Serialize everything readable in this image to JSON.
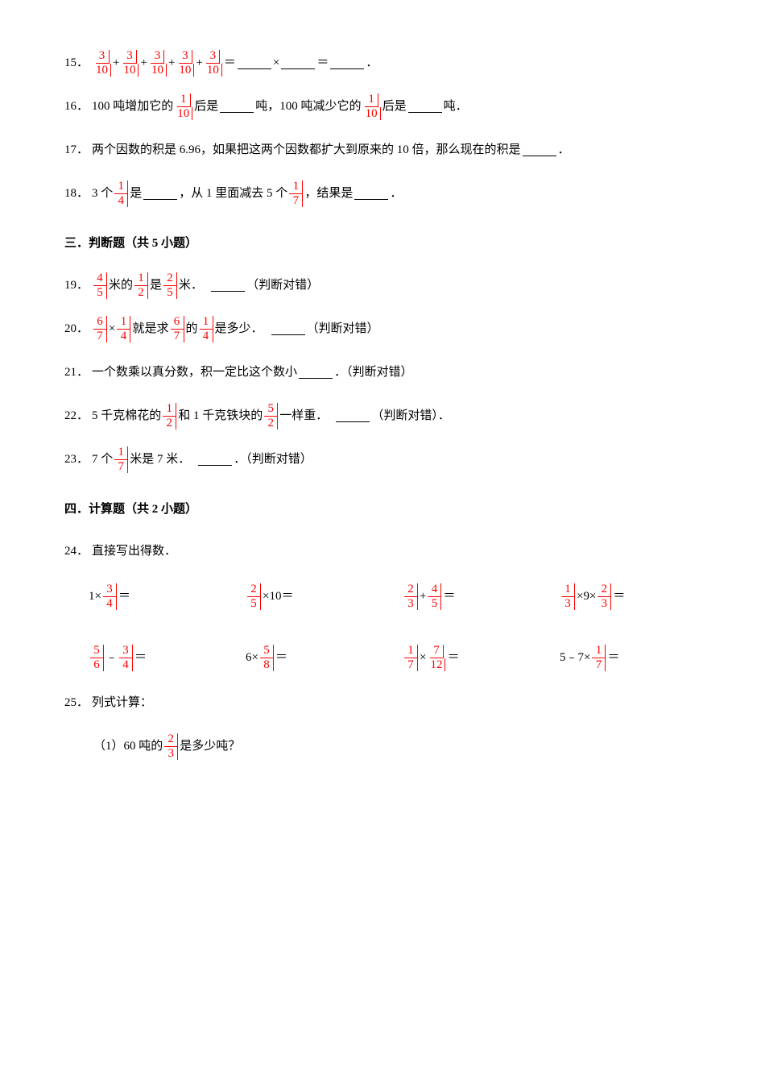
{
  "q15": {
    "num": "15．",
    "f": {
      "n": "3",
      "d": "10"
    },
    "eq": "＝",
    "times": "×",
    "period": "．"
  },
  "q16": {
    "num": "16．",
    "t1": "100 吨增加它的",
    "f1": {
      "n": "1",
      "d": "10"
    },
    "t2": "后是",
    "t3": "吨，100 吨减少它的",
    "f2": {
      "n": "1",
      "d": "10"
    },
    "t4": "后是",
    "t5": "吨．"
  },
  "q17": {
    "num": "17．",
    "t1": "两个因数的积是 6.96，如果把这两个因数都扩大到原来的 10 倍，那么现在的积是",
    "t2": "．"
  },
  "q18": {
    "num": "18．",
    "t1": "3 个",
    "f1": {
      "n": "1",
      "d": "4"
    },
    "t2": "是",
    "t3": "，从 1 里面减去 5 个",
    "f2": {
      "n": "1",
      "d": "7"
    },
    "t4": "，结果是",
    "t5": "．"
  },
  "sec3": "三．判断题（共 5 小题）",
  "q19": {
    "num": "19．",
    "f1": {
      "n": "4",
      "d": "5"
    },
    "t1": "米的",
    "f2": {
      "n": "1",
      "d": "2"
    },
    "t2": "是",
    "f3": {
      "n": "2",
      "d": "5"
    },
    "t3": "米．",
    "t4": "（判断对错）"
  },
  "q20": {
    "num": "20．",
    "f1": {
      "n": "6",
      "d": "7"
    },
    "t1": "×",
    "f2": {
      "n": "1",
      "d": "4"
    },
    "t2": "就是求",
    "f3": {
      "n": "6",
      "d": "7"
    },
    "t3": "的",
    "f4": {
      "n": "1",
      "d": "4"
    },
    "t4": "是多少．",
    "t5": "（判断对错）"
  },
  "q21": {
    "num": "21．",
    "t1": "一个数乘以真分数，积一定比这个数小",
    "t2": "．（判断对错）"
  },
  "q22": {
    "num": "22．",
    "t1": "5 千克棉花的",
    "f1": {
      "n": "1",
      "d": "2"
    },
    "t2": "和 1 千克铁块的",
    "f2": {
      "n": "5",
      "d": "2"
    },
    "t3": "一样重．",
    "t4": "（判断对错）．"
  },
  "q23": {
    "num": "23．",
    "t1": "7 个",
    "f1": {
      "n": "1",
      "d": "7"
    },
    "t2": "米是 7 米．",
    "t3": "．（判断对错）"
  },
  "sec4": "四．计算题（共 2 小题）",
  "q24": {
    "num": "24．",
    "t1": "直接写出得数．",
    "cells": [
      {
        "parts": [
          {
            "txt": "1×"
          },
          {
            "frac": {
              "n": "3",
              "d": "4"
            }
          },
          {
            "txt": "＝"
          }
        ]
      },
      {
        "parts": [
          {
            "frac": {
              "n": "2",
              "d": "5"
            }
          },
          {
            "txt": "×10＝"
          }
        ]
      },
      {
        "parts": [
          {
            "frac": {
              "n": "2",
              "d": "3"
            }
          },
          {
            "txt": "+"
          },
          {
            "frac": {
              "n": "4",
              "d": "5"
            }
          },
          {
            "txt": "＝"
          }
        ]
      },
      {
        "parts": [
          {
            "frac": {
              "n": "1",
              "d": "3"
            }
          },
          {
            "txt": "×9×"
          },
          {
            "frac": {
              "n": "2",
              "d": "3"
            }
          },
          {
            "txt": "＝"
          }
        ]
      },
      {
        "parts": [
          {
            "frac": {
              "n": "5",
              "d": "6"
            }
          },
          {
            "txt": "﹣"
          },
          {
            "frac": {
              "n": "3",
              "d": "4"
            }
          },
          {
            "txt": "＝"
          }
        ]
      },
      {
        "parts": [
          {
            "txt": "6×"
          },
          {
            "frac": {
              "n": "5",
              "d": "8"
            }
          },
          {
            "txt": "＝"
          }
        ]
      },
      {
        "parts": [
          {
            "frac": {
              "n": "1",
              "d": "7"
            }
          },
          {
            "txt": "×"
          },
          {
            "frac": {
              "n": "7",
              "d": "12"
            }
          },
          {
            "txt": "＝"
          }
        ]
      },
      {
        "parts": [
          {
            "txt": "5﹣7×"
          },
          {
            "frac": {
              "n": "1",
              "d": "7"
            }
          },
          {
            "txt": "＝"
          }
        ]
      }
    ]
  },
  "q25": {
    "num": "25．",
    "t1": "列式计算：",
    "sub1a": "（1）60 吨的",
    "f1": {
      "n": "2",
      "d": "3"
    },
    "sub1b": "是多少吨？"
  }
}
